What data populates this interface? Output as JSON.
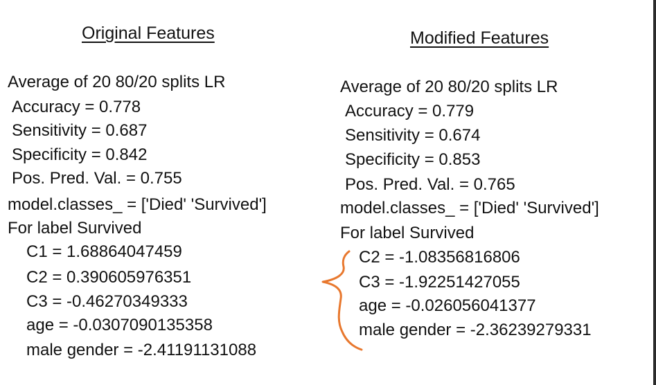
{
  "original": {
    "heading": "Original Features",
    "summary": "Average of 20 80/20 splits LR",
    "metrics": [
      "Accuracy = 0.778",
      "Sensitivity = 0.687",
      "Specificity = 0.842",
      "Pos. Pred. Val. = 0.755"
    ],
    "classes": "model.classes_ = ['Died' 'Survived']",
    "label": "For label Survived",
    "coefficients": [
      "C1 = 1.68864047459",
      "C2 = 0.390605976351",
      "C3 = -0.46270349333",
      "age = -0.0307090135358",
      "male gender = -2.41191131088"
    ]
  },
  "modified": {
    "heading": "Modified Features",
    "summary": "Average of 20 80/20 splits LR",
    "metrics": [
      "Accuracy = 0.779",
      "Sensitivity = 0.674",
      "Specificity = 0.853",
      "Pos. Pred. Val. = 0.765"
    ],
    "classes": "model.classes_ = ['Died' 'Survived']",
    "label": "For label Survived",
    "coefficients": [
      "C2 = -1.08356816806",
      "C3 = -1.92251427055",
      "age = -0.026056041377",
      "male gender = -2.36239279331"
    ]
  },
  "annotation": {
    "brace_color": "#e8782e"
  }
}
